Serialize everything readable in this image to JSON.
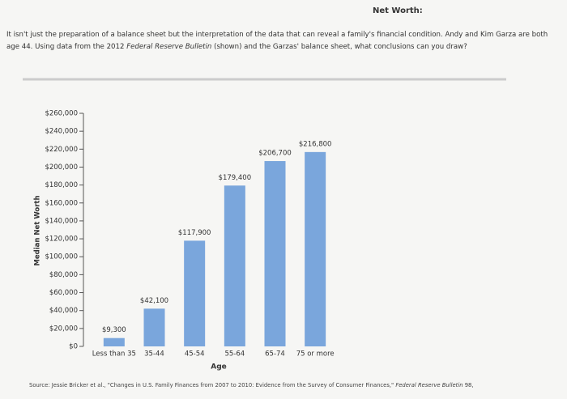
{
  "header": {
    "title": "Net Worth:"
  },
  "question": {
    "before": "It isn't just the preparation of a balance sheet but the interpretation of the data that can reveal a family's financial condition. Andy and Kim Garza are both age 44. Using data from the 2012 ",
    "italic": "Federal Reserve Bulletin",
    "after": " (shown) and the Garzas' balance sheet, what conclusions can you draw?"
  },
  "chart_data": {
    "type": "bar",
    "categories": [
      "Less than 35",
      "35-44",
      "45-54",
      "55-64",
      "65-74",
      "75 or more"
    ],
    "values": [
      9300,
      42100,
      117900,
      179400,
      206700,
      216800
    ],
    "value_labels": [
      "$9,300",
      "$42,100",
      "$117,900",
      "$179,400",
      "$206,700",
      "$216,800"
    ],
    "color": "#7aa6dc",
    "x_label": "Age",
    "y_label": "Median Net Worth",
    "ylim": [
      0,
      260000
    ],
    "yticks": [
      {
        "value": 0,
        "label": "$0"
      },
      {
        "value": 20000,
        "label": "$20,000"
      },
      {
        "value": 40000,
        "label": "$40,000"
      },
      {
        "value": 60000,
        "label": "$60,000"
      },
      {
        "value": 80000,
        "label": "$80,000"
      },
      {
        "value": 100000,
        "label": "$100,000"
      },
      {
        "value": 120000,
        "label": "$120,000"
      },
      {
        "value": 140000,
        "label": "$140,000"
      },
      {
        "value": 160000,
        "label": "$160,000"
      },
      {
        "value": 180000,
        "label": "$180,000"
      },
      {
        "value": 200000,
        "label": "$200,000"
      },
      {
        "value": 220000,
        "label": "$220,000"
      },
      {
        "value": 240000,
        "label": "$240,000"
      },
      {
        "value": 260000,
        "label": "$260,000"
      }
    ],
    "grid": false
  },
  "source": {
    "before": "Source: Jessie Bricker et al., \"Changes in U.S. Family Finances from 2007 to 2010: Evidence from the Survey of Consumer Finances,\" ",
    "italic": "Federal Reserve Bulletin",
    "after": " 98,"
  }
}
